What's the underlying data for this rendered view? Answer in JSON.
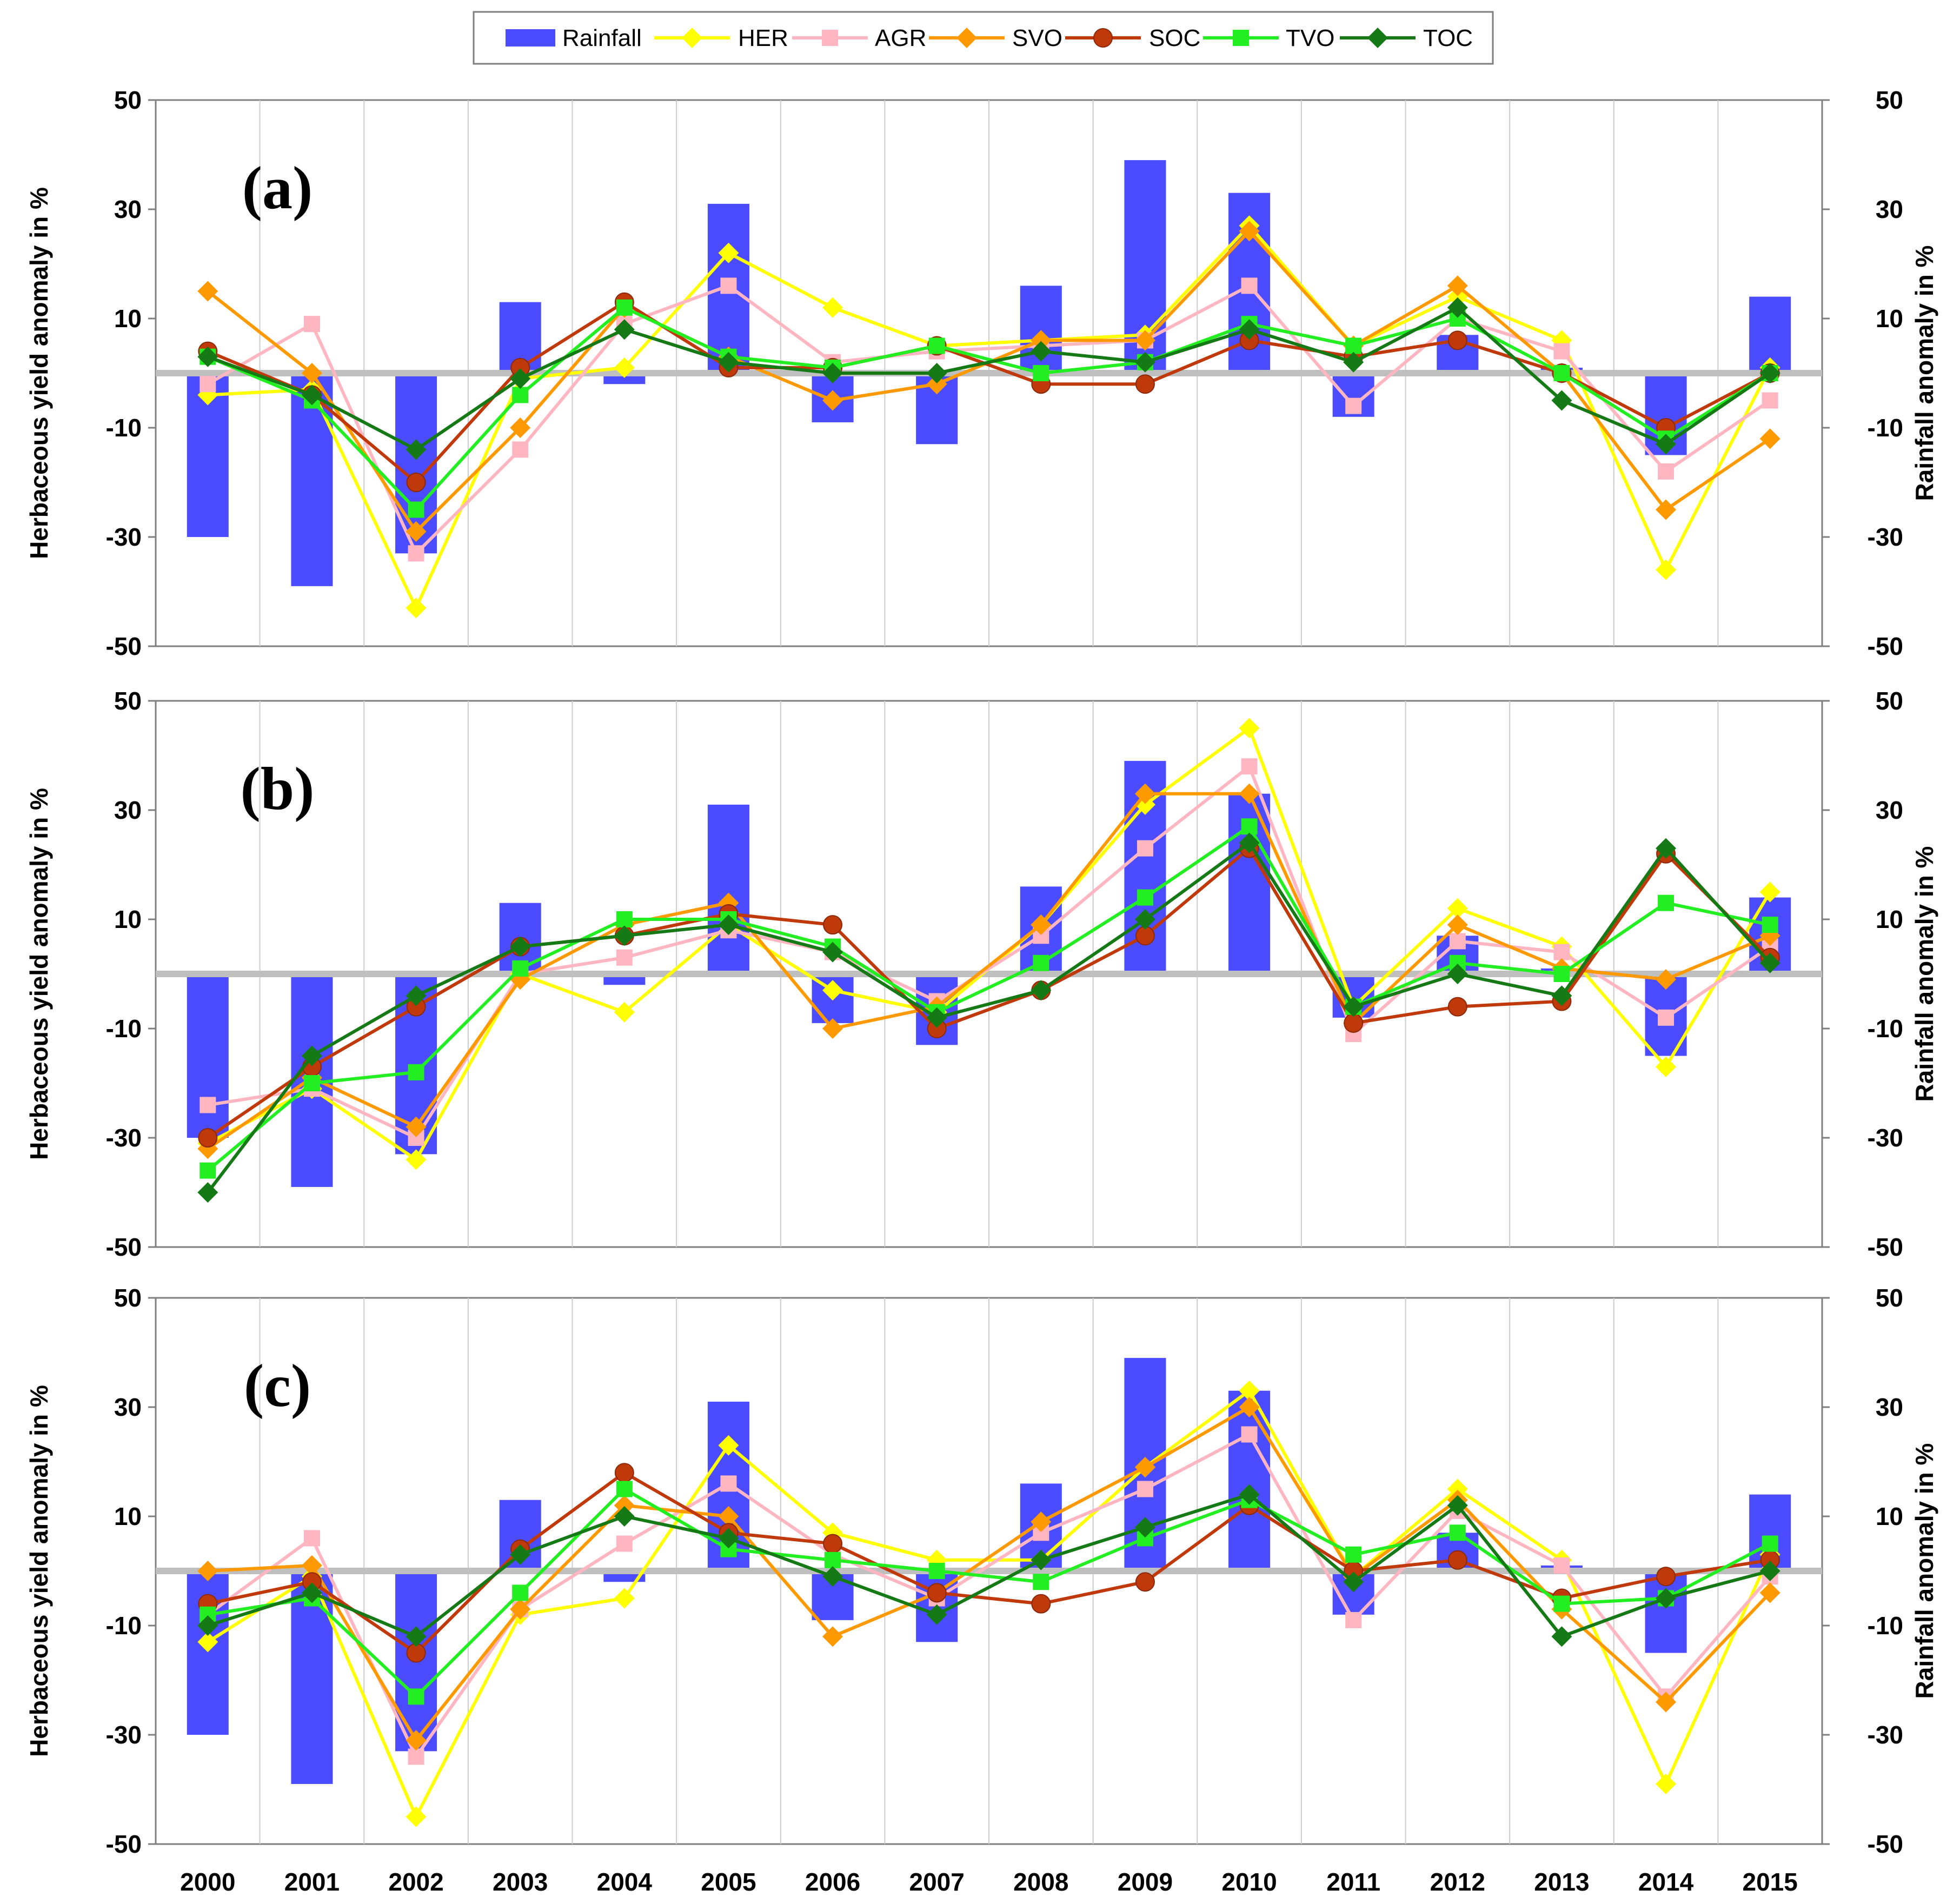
{
  "chart_data": {
    "type": "bar+line",
    "years": [
      "2000",
      "2001",
      "2002",
      "2003",
      "2004",
      "2005",
      "2006",
      "2007",
      "2008",
      "2009",
      "2010",
      "2011",
      "2012",
      "2013",
      "2014",
      "2015"
    ],
    "left_axis_label": "Herbaceous yield anomaly in %",
    "right_axis_label": "Rainfall anomaly in %",
    "ylim": [
      -50,
      50
    ],
    "yticks": [
      -50,
      -30,
      -10,
      10,
      30,
      50
    ],
    "rainfall": [
      -30,
      -39,
      -33,
      13,
      -2,
      31,
      -9,
      -13,
      16,
      39,
      33,
      -8,
      7,
      1,
      -15,
      14
    ],
    "legend": [
      {
        "key": "Rainfall",
        "label": "Rainfall",
        "color": "#4B4BFF",
        "kind": "bar"
      },
      {
        "key": "HER",
        "label": "HER",
        "color": "#FFFF00",
        "kind": "diamond"
      },
      {
        "key": "AGR",
        "label": "AGR",
        "color": "#FFB6C1",
        "kind": "square"
      },
      {
        "key": "SVO",
        "label": "SVO",
        "color": "#FF9900",
        "kind": "diamond"
      },
      {
        "key": "SOC",
        "label": "SOC",
        "color": "#C0390B",
        "kind": "circle"
      },
      {
        "key": "TVO",
        "label": "TVO",
        "color": "#22EE22",
        "kind": "square"
      },
      {
        "key": "TOC",
        "label": "TOC",
        "color": "#157A15",
        "kind": "diamond"
      }
    ],
    "panels": [
      {
        "label": "(a)",
        "series": {
          "HER": [
            -4,
            -3,
            -43,
            -1,
            1,
            22,
            12,
            5,
            6,
            7,
            27,
            5,
            14,
            6,
            -36,
            1
          ],
          "AGR": [
            -2,
            9,
            -33,
            -14,
            9,
            16,
            2,
            4,
            5,
            6,
            16,
            -6,
            10,
            4,
            -18,
            -5
          ],
          "SVO": [
            15,
            0,
            -29,
            -10,
            12,
            3,
            -5,
            -2,
            6,
            6,
            26,
            5,
            16,
            0,
            -25,
            -12
          ],
          "SOC": [
            4,
            -4,
            -20,
            1,
            13,
            1,
            1,
            5,
            -2,
            -2,
            6,
            3,
            6,
            0,
            -10,
            0
          ],
          "TVO": [
            3,
            -5,
            -25,
            -4,
            12,
            3,
            1,
            5,
            0,
            2,
            9,
            5,
            10,
            0,
            -12,
            0
          ],
          "TOC": [
            3,
            -4,
            -14,
            -1,
            8,
            2,
            0,
            0,
            4,
            2,
            8,
            2,
            12,
            -5,
            -13,
            0
          ]
        }
      },
      {
        "label": "(b)",
        "series": {
          "HER": [
            -31,
            -21,
            -34,
            0,
            -7,
            9,
            -3,
            -7,
            9,
            31,
            45,
            -6,
            12,
            5,
            -17,
            15
          ],
          "AGR": [
            -24,
            -21,
            -30,
            0,
            3,
            8,
            4,
            -5,
            7,
            23,
            38,
            -11,
            6,
            4,
            -8,
            5
          ],
          "SVO": [
            -32,
            -19,
            -28,
            -1,
            9,
            13,
            -10,
            -6,
            9,
            33,
            33,
            -9,
            9,
            1,
            -1,
            7
          ],
          "SOC": [
            -30,
            -17,
            -6,
            5,
            7,
            11,
            9,
            -10,
            -3,
            7,
            23,
            -9,
            -6,
            -5,
            22,
            3
          ],
          "TVO": [
            -36,
            -20,
            -18,
            1,
            10,
            10,
            5,
            -7,
            2,
            14,
            27,
            -6,
            2,
            0,
            13,
            9
          ],
          "TOC": [
            -40,
            -15,
            -4,
            5,
            7,
            9,
            4,
            -8,
            -3,
            10,
            24,
            -6,
            0,
            -4,
            23,
            2
          ]
        }
      },
      {
        "label": "(c)",
        "series": {
          "HER": [
            -13,
            -1,
            -45,
            -8,
            -5,
            23,
            7,
            2,
            2,
            19,
            33,
            -1,
            15,
            2,
            -39,
            3
          ],
          "AGR": [
            -8,
            6,
            -34,
            -7,
            5,
            16,
            3,
            -5,
            7,
            15,
            25,
            -9,
            11,
            1,
            -23,
            -1
          ],
          "SVO": [
            0,
            1,
            -31,
            -7,
            12,
            10,
            -12,
            -4,
            9,
            19,
            30,
            -1,
            13,
            -7,
            -24,
            -4
          ],
          "SOC": [
            -6,
            -2,
            -15,
            4,
            18,
            7,
            5,
            -4,
            -6,
            -2,
            12,
            0,
            2,
            -5,
            -1,
            2
          ],
          "TVO": [
            -8,
            -5,
            -23,
            -4,
            15,
            4,
            2,
            0,
            -2,
            6,
            13,
            3,
            7,
            -6,
            -5,
            5
          ],
          "TOC": [
            -10,
            -4,
            -12,
            3,
            10,
            6,
            -1,
            -8,
            2,
            8,
            14,
            -2,
            12,
            -12,
            -5,
            0
          ]
        }
      }
    ]
  }
}
